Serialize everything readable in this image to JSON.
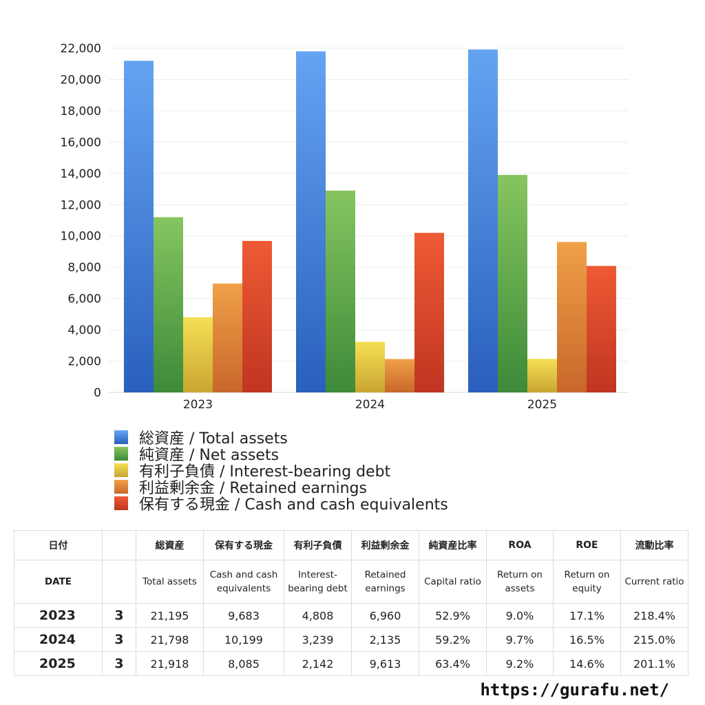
{
  "chart_data": {
    "type": "bar",
    "categories": [
      "2023",
      "2024",
      "2025"
    ],
    "ylim": [
      0,
      22000
    ],
    "yticks": [
      0,
      2000,
      4000,
      6000,
      8000,
      10000,
      12000,
      14000,
      16000,
      18000,
      20000,
      22000
    ],
    "ytick_labels": [
      "0",
      "2,000",
      "4,000",
      "6,000",
      "8,000",
      "10,000",
      "12,000",
      "14,000",
      "16,000",
      "18,000",
      "20,000",
      "22,000"
    ],
    "grid": true,
    "legend_position": "bottom",
    "series": [
      {
        "name": "総資産 / Total assets",
        "values": [
          21195,
          21798,
          21918
        ],
        "color_top": "#64a4f2",
        "color_bottom": "#2a5fbd"
      },
      {
        "name": "純資産 / Net assets",
        "values": [
          11200,
          12900,
          13900
        ],
        "color_top": "#86c560",
        "color_bottom": "#3d8a39"
      },
      {
        "name": "有利子負債 / Interest-bearing debt",
        "values": [
          4808,
          3239,
          2142
        ],
        "color_top": "#f5e054",
        "color_bottom": "#c9a532"
      },
      {
        "name": "利益剰余金 / Retained earnings",
        "values": [
          6960,
          2135,
          9613
        ],
        "color_top": "#f0a048",
        "color_bottom": "#c8672a"
      },
      {
        "name": "保有する現金 /  Cash and cash equivalents",
        "values": [
          9683,
          10199,
          8085
        ],
        "color_top": "#ee5a34",
        "color_bottom": "#c03522"
      }
    ]
  },
  "table": {
    "header_ja": [
      "日付",
      "",
      "総資産",
      "保有する現金",
      "有利子負債",
      "利益剰余金",
      "純資産比率",
      "ROA",
      "ROE",
      "流動比率"
    ],
    "header_en": [
      "DATE",
      "",
      "Total assets",
      "Cash and cash equivalents",
      "Interest-bearing debt",
      "Retained earnings",
      "Capital ratio",
      "Return on assets",
      "Return on equity",
      "Current ratio"
    ],
    "rows": [
      {
        "year": "2023",
        "month": "3",
        "total_assets": "21,195",
        "cash": "9,683",
        "debt": "4,808",
        "retained": "6,960",
        "capital_ratio": "52.9%",
        "roa": "9.0%",
        "roe": "17.1%",
        "current_ratio": "218.4%"
      },
      {
        "year": "2024",
        "month": "3",
        "total_assets": "21,798",
        "cash": "10,199",
        "debt": "3,239",
        "retained": "2,135",
        "capital_ratio": "59.2%",
        "roa": "9.7%",
        "roe": "16.5%",
        "current_ratio": "215.0%"
      },
      {
        "year": "2025",
        "month": "3",
        "total_assets": "21,918",
        "cash": "8,085",
        "debt": "2,142",
        "retained": "9,613",
        "capital_ratio": "63.4%",
        "roa": "9.2%",
        "roe": "14.6%",
        "current_ratio": "201.1%"
      }
    ]
  },
  "footer": {
    "url": "https://gurafu.net/"
  }
}
